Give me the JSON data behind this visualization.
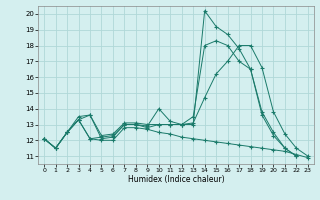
{
  "xlabel": "Humidex (Indice chaleur)",
  "bg_color": "#d4efef",
  "grid_color": "#b0d8d8",
  "line_color": "#1a7a6a",
  "xlim": [
    -0.5,
    23.5
  ],
  "ylim": [
    10.5,
    20.5
  ],
  "xticks": [
    0,
    1,
    2,
    3,
    4,
    5,
    6,
    7,
    8,
    9,
    10,
    11,
    12,
    13,
    14,
    15,
    16,
    17,
    18,
    19,
    20,
    21,
    22,
    23
  ],
  "yticks": [
    11,
    12,
    13,
    14,
    15,
    16,
    17,
    18,
    19,
    20
  ],
  "series": [
    {
      "x": [
        0,
        1,
        2,
        3,
        4,
        5,
        6,
        7,
        8,
        9,
        10,
        11,
        12,
        13,
        14,
        15,
        16,
        17,
        18,
        19,
        20,
        21,
        22,
        23
      ],
      "y": [
        12.1,
        11.5,
        12.5,
        13.3,
        13.6,
        12.1,
        12.2,
        13.0,
        13.0,
        12.9,
        14.0,
        13.2,
        13.0,
        13.0,
        20.2,
        19.2,
        18.7,
        17.8,
        16.5,
        13.6,
        12.3,
        11.5,
        11.0,
        null
      ]
    },
    {
      "x": [
        0,
        1,
        2,
        3,
        4,
        5,
        6,
        7,
        8,
        9,
        10,
        11,
        12,
        13,
        14,
        15,
        16,
        17,
        18,
        19,
        20,
        21,
        22,
        23
      ],
      "y": [
        12.1,
        11.5,
        12.5,
        13.3,
        12.1,
        12.2,
        12.3,
        13.0,
        13.0,
        12.8,
        13.0,
        13.0,
        13.0,
        13.1,
        14.7,
        16.2,
        17.0,
        18.0,
        18.0,
        16.6,
        13.8,
        12.4,
        11.5,
        11.0
      ]
    },
    {
      "x": [
        0,
        1,
        2,
        3,
        4,
        5,
        6,
        7,
        8,
        9,
        10,
        11,
        12,
        13,
        14,
        15,
        16,
        17,
        18,
        19,
        20,
        21,
        22,
        23
      ],
      "y": [
        12.1,
        11.5,
        12.5,
        13.3,
        12.1,
        12.0,
        12.0,
        12.8,
        12.8,
        12.7,
        12.5,
        12.4,
        12.2,
        12.1,
        12.0,
        11.9,
        11.8,
        11.7,
        11.6,
        11.5,
        11.4,
        11.3,
        11.1,
        10.9
      ]
    },
    {
      "x": [
        0,
        1,
        2,
        3,
        4,
        5,
        6,
        7,
        8,
        9,
        10,
        11,
        12,
        13,
        14,
        15,
        16,
        17,
        18,
        19,
        20,
        21,
        22,
        23
      ],
      "y": [
        12.1,
        11.5,
        12.5,
        13.5,
        13.6,
        12.3,
        12.4,
        13.1,
        13.1,
        13.0,
        13.0,
        13.0,
        13.0,
        13.5,
        18.0,
        18.3,
        18.0,
        17.0,
        16.5,
        13.8,
        12.5,
        11.5,
        11.0,
        null
      ]
    }
  ]
}
